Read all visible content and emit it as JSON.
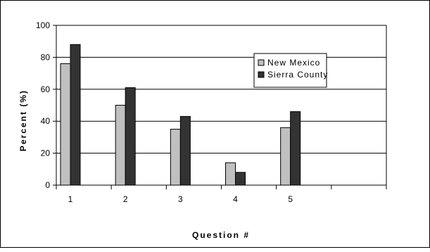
{
  "chart_data": {
    "type": "bar",
    "xlabel": "Question #",
    "ylabel": "Percent (%)",
    "categories": [
      "1",
      "2",
      "3",
      "4",
      "5"
    ],
    "ylim": [
      0,
      100
    ],
    "yticks": [
      0,
      20,
      40,
      60,
      80,
      100
    ],
    "grid": true,
    "legend_position": "top-right",
    "series": [
      {
        "name": "New Mexico",
        "color": "#c0c0c0",
        "values": [
          76,
          50,
          35,
          14,
          36
        ]
      },
      {
        "name": "Sierra County",
        "color": "#333333",
        "values": [
          88,
          61,
          43,
          8,
          46
        ]
      }
    ]
  }
}
